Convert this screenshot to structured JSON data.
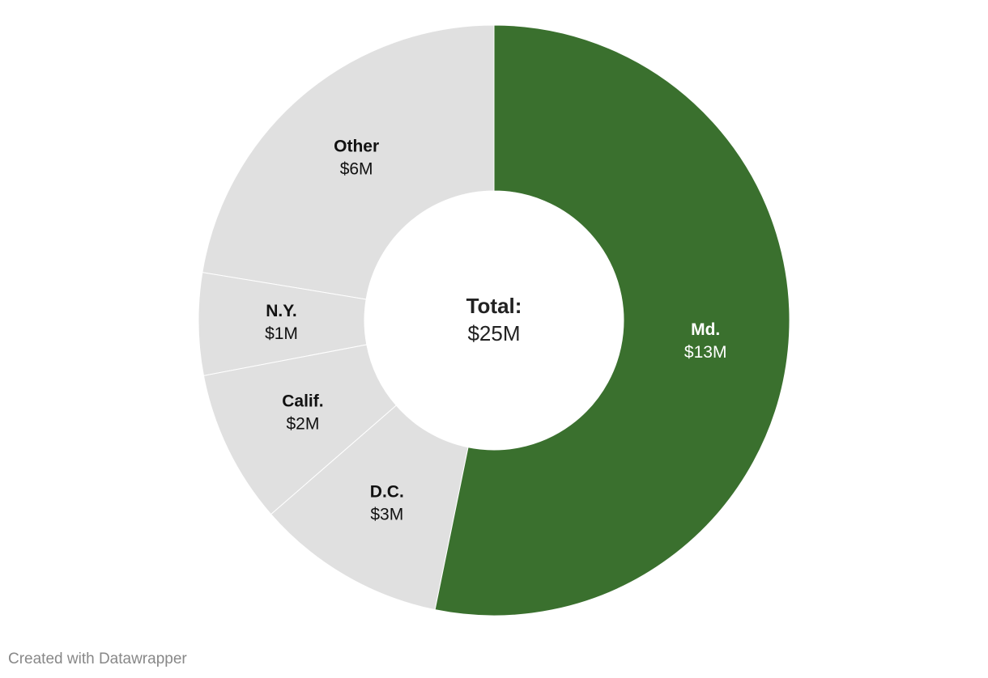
{
  "chart_data": {
    "type": "donut",
    "categories": [
      "Md.",
      "D.C.",
      "Calif.",
      "N.Y.",
      "Other"
    ],
    "values": [
      13.3,
      2.6,
      2.1,
      1.4,
      5.6
    ],
    "value_labels": [
      "$13M",
      "$3M",
      "$2M",
      "$1M",
      "$6M"
    ],
    "colors": [
      "#3a702e",
      "#e0e0e0",
      "#e0e0e0",
      "#e0e0e0",
      "#e0e0e0"
    ],
    "center_title": "Total:",
    "center_value": "$25M",
    "footer": "Created with Datawrapper"
  }
}
